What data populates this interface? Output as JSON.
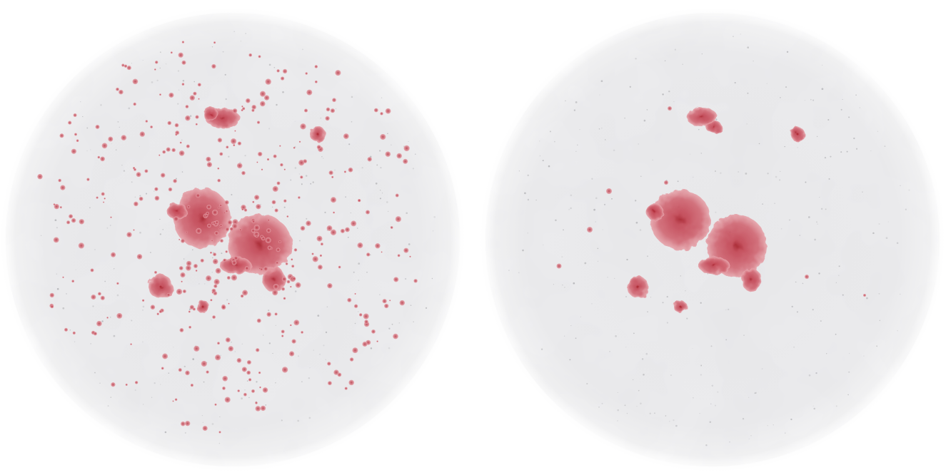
{
  "colors": {
    "background": "#ffffff",
    "disc_fill": "#e9e9eb",
    "disc_edge": "#ffffff",
    "dark_speck": "#8f8f93",
    "cluster_core": "#b0303a",
    "cluster_mid": "#c95460",
    "cluster_edge": "#e39aa2"
  },
  "panels": [
    {
      "id": "left-panel",
      "description_label": ""
    },
    {
      "id": "right-panel",
      "description_label": ""
    }
  ]
}
